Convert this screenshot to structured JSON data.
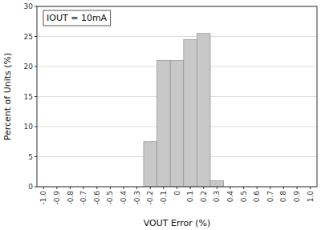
{
  "chart_data": {
    "type": "histogram",
    "bins": [
      -0.25,
      -0.15,
      -0.05,
      0.05,
      0.15,
      0.25,
      0.35
    ],
    "values": [
      7.5,
      21.0,
      21.0,
      24.5,
      25.5,
      1.0
    ],
    "color": "#c8c8c8",
    "xlabel": "VOUT Error (%)",
    "ylabel": "Percent of Units (%)",
    "annotation": "IOUT = 10mA",
    "xlim": [
      -1.05,
      1.05
    ],
    "ylim": [
      0,
      30
    ],
    "xticks": [
      {
        "value": -1.0,
        "label": "-1.0"
      },
      -0.9,
      -0.8,
      -0.7,
      -0.6,
      -0.5,
      -0.4,
      -0.3,
      -0.2,
      -0.1,
      0,
      0.1,
      0.2,
      0.3,
      0.4,
      0.5,
      0.6,
      0.7,
      0.8,
      0.9,
      {
        "value": 1.0,
        "label": "1.0"
      }
    ],
    "yticks": [
      0,
      5,
      10,
      15,
      20,
      25,
      30
    ],
    "grid": true
  }
}
